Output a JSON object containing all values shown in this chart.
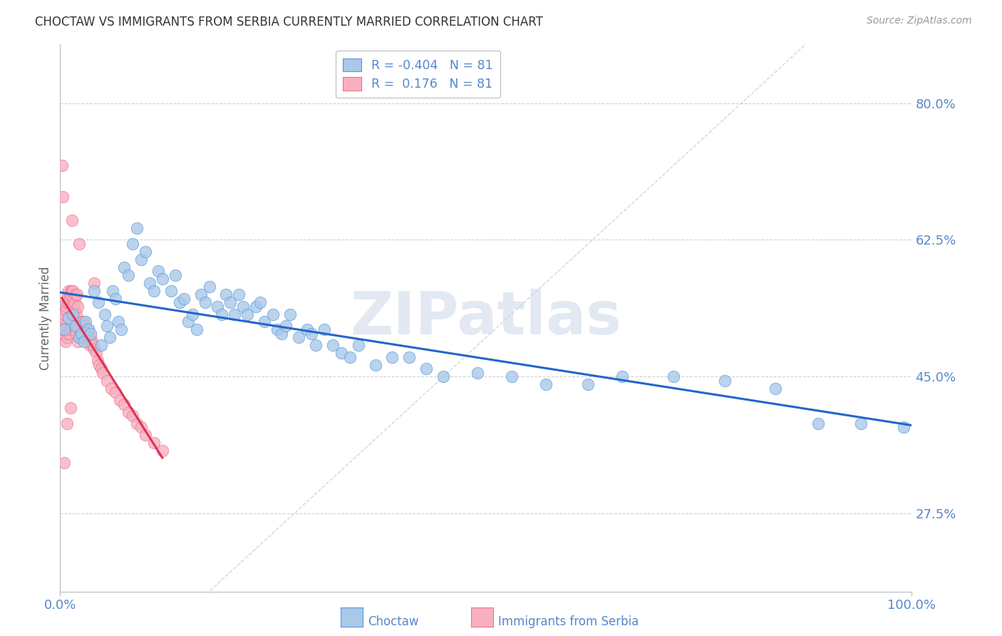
{
  "title": "CHOCTAW VS IMMIGRANTS FROM SERBIA CURRENTLY MARRIED CORRELATION CHART",
  "source": "Source: ZipAtlas.com",
  "ylabel": "Currently Married",
  "x_min": 0.0,
  "x_max": 1.0,
  "y_min": 0.175,
  "y_max": 0.875,
  "y_tick_values": [
    0.8,
    0.625,
    0.45,
    0.275
  ],
  "y_tick_labels": [
    "80.0%",
    "62.5%",
    "45.0%",
    "27.5%"
  ],
  "x_tick_values": [
    0.0,
    1.0
  ],
  "x_tick_labels": [
    "0.0%",
    "100.0%"
  ],
  "R1": "-0.404",
  "N1": "81",
  "R2": "0.176",
  "N2": "81",
  "legend_label1": "Choctaw",
  "legend_label2": "Immigrants from Serbia",
  "color_blue_fill": "#aac8e8",
  "color_blue_edge": "#5599dd",
  "color_pink_fill": "#f8b0c0",
  "color_pink_edge": "#ee7090",
  "trendline_blue": "#2266cc",
  "trendline_pink": "#dd3355",
  "diagonal_color": "#cccccc",
  "background": "#ffffff",
  "grid_color": "#cccccc",
  "title_color": "#333333",
  "tick_label_color": "#5588cc",
  "watermark_color": "#cdd8e8",
  "choctaw_x": [
    0.005,
    0.01,
    0.015,
    0.018,
    0.022,
    0.025,
    0.028,
    0.03,
    0.033,
    0.036,
    0.04,
    0.045,
    0.048,
    0.052,
    0.055,
    0.058,
    0.062,
    0.065,
    0.068,
    0.072,
    0.075,
    0.08,
    0.085,
    0.09,
    0.095,
    0.1,
    0.105,
    0.11,
    0.115,
    0.12,
    0.13,
    0.135,
    0.14,
    0.145,
    0.15,
    0.155,
    0.16,
    0.165,
    0.17,
    0.175,
    0.185,
    0.19,
    0.195,
    0.2,
    0.205,
    0.21,
    0.215,
    0.22,
    0.23,
    0.235,
    0.24,
    0.25,
    0.255,
    0.26,
    0.265,
    0.27,
    0.28,
    0.29,
    0.295,
    0.3,
    0.31,
    0.32,
    0.33,
    0.34,
    0.35,
    0.37,
    0.39,
    0.41,
    0.43,
    0.45,
    0.49,
    0.53,
    0.57,
    0.62,
    0.66,
    0.72,
    0.78,
    0.84,
    0.89,
    0.94,
    0.99
  ],
  "choctaw_y": [
    0.51,
    0.525,
    0.53,
    0.515,
    0.5,
    0.505,
    0.495,
    0.52,
    0.51,
    0.505,
    0.56,
    0.545,
    0.49,
    0.53,
    0.515,
    0.5,
    0.56,
    0.55,
    0.52,
    0.51,
    0.59,
    0.58,
    0.62,
    0.64,
    0.6,
    0.61,
    0.57,
    0.56,
    0.585,
    0.575,
    0.56,
    0.58,
    0.545,
    0.55,
    0.52,
    0.53,
    0.51,
    0.555,
    0.545,
    0.565,
    0.54,
    0.53,
    0.555,
    0.545,
    0.53,
    0.555,
    0.54,
    0.53,
    0.54,
    0.545,
    0.52,
    0.53,
    0.51,
    0.505,
    0.515,
    0.53,
    0.5,
    0.51,
    0.505,
    0.49,
    0.51,
    0.49,
    0.48,
    0.475,
    0.49,
    0.465,
    0.475,
    0.475,
    0.46,
    0.45,
    0.455,
    0.45,
    0.44,
    0.44,
    0.45,
    0.45,
    0.445,
    0.435,
    0.39,
    0.39,
    0.385
  ],
  "serbia_x": [
    0.002,
    0.003,
    0.004,
    0.005,
    0.005,
    0.006,
    0.006,
    0.007,
    0.007,
    0.008,
    0.008,
    0.009,
    0.009,
    0.01,
    0.01,
    0.011,
    0.011,
    0.012,
    0.012,
    0.013,
    0.013,
    0.014,
    0.014,
    0.015,
    0.015,
    0.016,
    0.016,
    0.017,
    0.017,
    0.018,
    0.018,
    0.019,
    0.019,
    0.02,
    0.02,
    0.021,
    0.021,
    0.022,
    0.022,
    0.023,
    0.024,
    0.025,
    0.026,
    0.027,
    0.028,
    0.029,
    0.03,
    0.031,
    0.032,
    0.033,
    0.034,
    0.035,
    0.036,
    0.037,
    0.038,
    0.04,
    0.042,
    0.044,
    0.046,
    0.048,
    0.05,
    0.055,
    0.06,
    0.065,
    0.07,
    0.075,
    0.08,
    0.085,
    0.09,
    0.095,
    0.1,
    0.11,
    0.12,
    0.002,
    0.003,
    0.014,
    0.022,
    0.04,
    0.012,
    0.008,
    0.005
  ],
  "serbia_y": [
    0.505,
    0.51,
    0.515,
    0.525,
    0.53,
    0.535,
    0.495,
    0.54,
    0.545,
    0.55,
    0.5,
    0.555,
    0.505,
    0.545,
    0.56,
    0.55,
    0.505,
    0.555,
    0.51,
    0.56,
    0.515,
    0.56,
    0.53,
    0.545,
    0.56,
    0.55,
    0.54,
    0.535,
    0.545,
    0.555,
    0.51,
    0.53,
    0.505,
    0.515,
    0.555,
    0.54,
    0.495,
    0.5,
    0.515,
    0.51,
    0.52,
    0.51,
    0.505,
    0.52,
    0.5,
    0.515,
    0.51,
    0.5,
    0.505,
    0.51,
    0.495,
    0.49,
    0.5,
    0.495,
    0.49,
    0.485,
    0.48,
    0.47,
    0.465,
    0.46,
    0.455,
    0.445,
    0.435,
    0.43,
    0.42,
    0.415,
    0.405,
    0.4,
    0.39,
    0.385,
    0.375,
    0.365,
    0.355,
    0.72,
    0.68,
    0.65,
    0.62,
    0.57,
    0.41,
    0.39,
    0.34
  ]
}
